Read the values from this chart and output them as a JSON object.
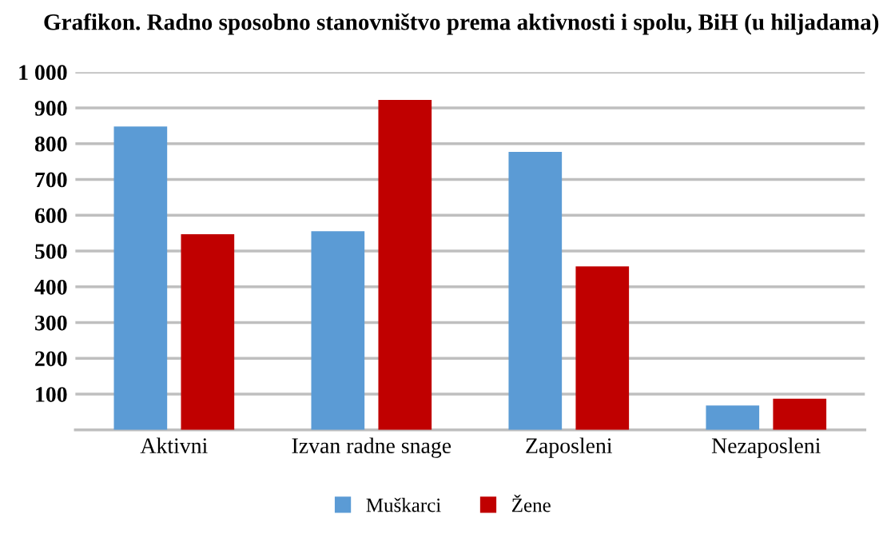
{
  "chart_data": {
    "type": "bar",
    "title": "Grafikon. Radno sposobno stanovništvo prema aktivnosti i spolu, BiH (u hiljadama)",
    "categories": [
      "Aktivni",
      "Izvan radne snage",
      "Zaposleni",
      "Nezaposleni"
    ],
    "series": [
      {
        "name": "Muškarci",
        "color": "#5b9bd5",
        "values": [
          848,
          555,
          777,
          68
        ]
      },
      {
        "name": "Žene",
        "color": "#c00000",
        "values": [
          547,
          922,
          457,
          87
        ]
      }
    ],
    "ylim": [
      0,
      1000
    ],
    "yticks": [
      {
        "value": 0,
        "label": null
      },
      100,
      200,
      300,
      400,
      500,
      600,
      700,
      800,
      900,
      {
        "value": 1000,
        "label": "1 000"
      }
    ],
    "grid": "y",
    "legend": "bottom"
  }
}
